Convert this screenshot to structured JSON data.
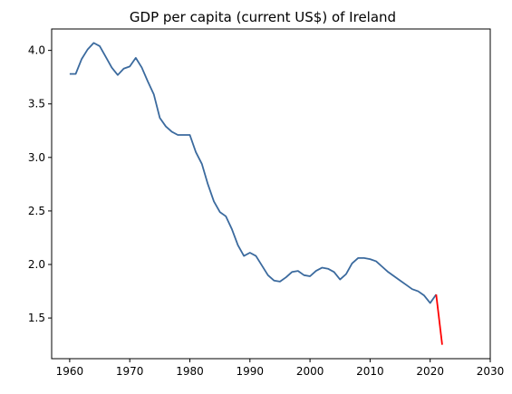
{
  "chart_data": {
    "type": "line",
    "title": "GDP per capita (current US$) of Ireland",
    "xlabel": "",
    "ylabel": "",
    "xlim": [
      1957,
      2030
    ],
    "ylim": [
      1.12,
      4.2
    ],
    "xticks": [
      1960,
      1970,
      1980,
      1990,
      2000,
      2010,
      2020,
      2030
    ],
    "yticks": [
      1.5,
      2.0,
      2.5,
      3.0,
      3.5,
      4.0
    ],
    "grid": false,
    "legend": "none",
    "series": [
      {
        "color": "#3b6a9e",
        "x": [
          1960,
          1961,
          1962,
          1963,
          1964,
          1965,
          1966,
          1967,
          1968,
          1969,
          1970,
          1971,
          1972,
          1973,
          1974,
          1975,
          1976,
          1977,
          1978,
          1979,
          1980,
          1981,
          1982,
          1983,
          1984,
          1985,
          1986,
          1987,
          1988,
          1989,
          1990,
          1991,
          1992,
          1993,
          1994,
          1995,
          1996,
          1997,
          1998,
          1999,
          2000,
          2001,
          2002,
          2003,
          2004,
          2005,
          2006,
          2007,
          2008,
          2009,
          2010,
          2011,
          2012,
          2013,
          2014,
          2015,
          2016,
          2017,
          2018,
          2019,
          2020,
          2021
        ],
        "values": [
          3.78,
          3.78,
          3.92,
          4.01,
          4.07,
          4.04,
          3.94,
          3.84,
          3.77,
          3.83,
          3.85,
          3.93,
          3.84,
          3.71,
          3.59,
          3.37,
          3.29,
          3.24,
          3.21,
          3.21,
          3.21,
          3.05,
          2.94,
          2.75,
          2.59,
          2.49,
          2.45,
          2.33,
          2.18,
          2.08,
          2.11,
          2.08,
          1.99,
          1.9,
          1.85,
          1.84,
          1.88,
          1.93,
          1.94,
          1.9,
          1.89,
          1.94,
          1.97,
          1.96,
          1.93,
          1.86,
          1.91,
          2.01,
          2.06,
          2.06,
          2.05,
          2.03,
          1.98,
          1.93,
          1.89,
          1.85,
          1.81,
          1.77,
          1.75,
          1.71,
          1.64,
          1.72
        ]
      },
      {
        "color": "#ff0000",
        "x": [
          2021,
          2022
        ],
        "values": [
          1.72,
          1.25
        ]
      }
    ]
  }
}
